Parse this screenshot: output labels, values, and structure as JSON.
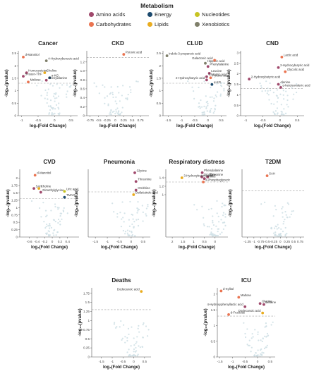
{
  "legend": {
    "title": "Metabolism",
    "items": [
      {
        "label": "Amino acids",
        "color": "#a0496c"
      },
      {
        "label": "Energy",
        "color": "#1c4a6e"
      },
      {
        "label": "Nucleotides",
        "color": "#c7c423"
      },
      {
        "label": "Carbohydrates",
        "color": "#ea7451"
      },
      {
        "label": "Lipids",
        "color": "#e9ac1f"
      },
      {
        "label": "Xenobiotics",
        "color": "#7f7f6a"
      }
    ]
  },
  "xlabel": "log₂(Fold Change)",
  "ylabel": "-log₁₀(pvalue)",
  "chart_data": [
    {
      "type": "scatter",
      "title": "Cancer",
      "xlim": [
        -1.1,
        0.7
      ],
      "ylim": [
        0,
        2.6
      ],
      "xticks": [
        "-1",
        "-0.5",
        "0",
        "0.5"
      ],
      "xtickvals": [
        -1,
        -0.5,
        0,
        0.5
      ],
      "yticks": [
        "0",
        "0.5",
        "1",
        "1.5",
        "2",
        "2.5"
      ],
      "ytickvals": [
        0,
        0.5,
        1,
        1.5,
        2,
        2.5
      ],
      "threshold": 1.3,
      "points": [
        {
          "label": "d-Mannitol",
          "x": -0.95,
          "y": 2.35,
          "cat": "Carbohydrates"
        },
        {
          "label": "4-Hydroxybenzoic acid",
          "x": -0.25,
          "y": 2.2,
          "cat": "Xenobiotics"
        },
        {
          "label": "Homocysteine",
          "x": -0.85,
          "y": 1.72,
          "cat": "Amino acids"
        },
        {
          "label": "Choline",
          "x": -0.3,
          "y": 1.72,
          "cat": "Lipids"
        },
        {
          "label": "5-Isoen-THF",
          "x": -0.95,
          "y": 1.58,
          "cat": "Amino acids"
        },
        {
          "label": "α-KG",
          "x": -0.15,
          "y": 1.52,
          "cat": "Energy"
        },
        {
          "label": "Phenylalanine",
          "x": -0.25,
          "y": 1.42,
          "cat": "Amino acids"
        },
        {
          "label": "Maltose",
          "x": -0.8,
          "y": 1.35,
          "cat": "Carbohydrates"
        }
      ]
    },
    {
      "type": "scatter",
      "title": "CKD",
      "xlim": [
        -0.85,
        1.0
      ],
      "ylim": [
        0,
        1.45
      ],
      "xticks": [
        "-0.75",
        "-0.5",
        "-0.25",
        "0",
        "0.25",
        "0.5",
        "0.75"
      ],
      "xtickvals": [
        -0.75,
        -0.5,
        -0.25,
        0,
        0.25,
        0.5,
        0.75
      ],
      "yticks": [
        "0",
        "0.2",
        "0.4",
        "0.6",
        "0.8",
        "1.0",
        "1.2"
      ],
      "ytickvals": [
        0,
        0.2,
        0.4,
        0.6,
        0.8,
        1.0,
        1.2
      ],
      "threshold": 1.3,
      "points": [
        {
          "label": "Pyruvic acid",
          "x": 0.25,
          "y": 1.37,
          "cat": "Carbohydrates"
        }
      ]
    },
    {
      "type": "scatter",
      "title": "CLUD",
      "xlim": [
        -1.7,
        0.7
      ],
      "ylim": [
        0,
        2.6
      ],
      "xticks": [
        "-1.5",
        "-1",
        "-0.5",
        "0",
        "0.5"
      ],
      "xtickvals": [
        -1.5,
        -1,
        -0.5,
        0,
        0.5
      ],
      "yticks": [
        "0",
        "0.5",
        "1",
        "1.5",
        "2",
        "2.5"
      ],
      "ytickvals": [
        0,
        0.5,
        1,
        1.5,
        2,
        2.5
      ],
      "threshold": 1.3,
      "points": [
        {
          "label": "Indole-3-propanoic acid",
          "x": -1.55,
          "y": 2.4,
          "cat": "Xenobiotics"
        },
        {
          "label": "Hippuric acid",
          "x": -0.1,
          "y": 2.1,
          "cat": "Xenobiotics"
        },
        {
          "label": "Galactonic acid",
          "x": 0.25,
          "y": 2.22,
          "cat": "Carbohydrates"
        },
        {
          "label": "Phenylalanine",
          "x": 0.0,
          "y": 1.97,
          "cat": "Amino acids"
        },
        {
          "label": "Leucine",
          "x": 0.05,
          "y": 1.7,
          "cat": "Amino acids"
        },
        {
          "label": "Glutamic acid",
          "x": -0.05,
          "y": 1.56,
          "cat": "Amino acids"
        },
        {
          "label": "Pyruvic acid",
          "x": 0.1,
          "y": 1.52,
          "cat": "Carbohydrates"
        },
        {
          "label": "2-Hydroxybutyric acid",
          "x": -0.05,
          "y": 1.43,
          "cat": "Amino acids"
        },
        {
          "label": "α-KG",
          "x": 0.15,
          "y": 1.25,
          "cat": "Energy"
        }
      ]
    },
    {
      "type": "scatter",
      "title": "CND",
      "xlim": [
        -1.15,
        0.7
      ],
      "ylim": [
        0,
        3.1
      ],
      "xticks": [
        "-1",
        "-0.5",
        "0",
        "0.5"
      ],
      "xtickvals": [
        -1,
        -0.5,
        0,
        0.5
      ],
      "yticks": [
        "0",
        "0.5",
        "1",
        "1.5",
        "2",
        "2.5",
        "3"
      ],
      "ytickvals": [
        0,
        0.5,
        1,
        1.5,
        2,
        2.5,
        3
      ],
      "threshold": 1.3,
      "points": [
        {
          "label": "Lactic acid",
          "x": 0.05,
          "y": 2.8,
          "cat": "Carbohydrates"
        },
        {
          "label": "2-Hydroxybutyric acid",
          "x": -0.05,
          "y": 2.3,
          "cat": "Amino acids"
        },
        {
          "label": "Glycolic acid",
          "x": 0.15,
          "y": 2.1,
          "cat": "Carbohydrates"
        },
        {
          "label": "2-Hydroxybutyric acid",
          "x": -0.9,
          "y": 1.75,
          "cat": "Amino acids"
        },
        {
          "label": "Alanine",
          "x": -0.05,
          "y": 1.5,
          "cat": "Amino acids"
        },
        {
          "label": "α-ketoisovaleric acid",
          "x": 0.02,
          "y": 1.35,
          "cat": "Amino acids"
        }
      ]
    },
    {
      "type": "scatter",
      "title": "CVD",
      "xlim": [
        -0.85,
        0.7
      ],
      "ylim": [
        0,
        2.3
      ],
      "xticks": [
        "-0.6",
        "-0.4",
        "-0.2",
        "0",
        "0.2",
        "0.4"
      ],
      "xtickvals": [
        -0.6,
        -0.4,
        -0.2,
        0,
        0.2,
        0.4
      ],
      "yticks": [
        "0",
        "0.25",
        "0.5",
        "0.75",
        "1",
        "1.25",
        "1.5",
        "1.75",
        "2"
      ],
      "ytickvals": [
        0,
        0.25,
        0.5,
        0.75,
        1,
        1.25,
        1.5,
        1.75,
        2
      ],
      "threshold": 1.3,
      "points": [
        {
          "label": "d-Mannitol",
          "x": -0.45,
          "y": 2.1,
          "cat": "Carbohydrates"
        },
        {
          "label": "SAH",
          "x": -0.48,
          "y": 1.65,
          "cat": "Amino acids"
        },
        {
          "label": "Choline",
          "x": -0.35,
          "y": 1.65,
          "cat": "Lipids"
        },
        {
          "label": "Dimethylglycine",
          "x": -0.3,
          "y": 1.52,
          "cat": "Amino acids"
        },
        {
          "label": "Uric acid",
          "x": 0.32,
          "y": 1.55,
          "cat": "Nucleotides"
        },
        {
          "label": "TMAO",
          "x": 0.32,
          "y": 1.35,
          "cat": "Energy"
        }
      ]
    },
    {
      "type": "scatter",
      "title": "Pneumonia",
      "xlim": [
        -1.8,
        0.8
      ],
      "ylim": [
        0,
        1.95
      ],
      "xticks": [
        "-1.5",
        "-1",
        "-0.5",
        "0",
        "0.5"
      ],
      "xtickvals": [
        -1.5,
        -1,
        -0.5,
        0,
        0.5
      ],
      "yticks": [],
      "ytickvals": [],
      "threshold": 1.3,
      "points": [
        {
          "label": "Glycine",
          "x": 0.15,
          "y": 1.85,
          "cat": "Amino acids"
        },
        {
          "label": "Threonine",
          "x": 0.2,
          "y": 1.6,
          "cat": "Amino acids"
        },
        {
          "label": "Ornithine",
          "x": 0.2,
          "y": 1.35,
          "cat": "Amino acids"
        },
        {
          "label": "Dodecanoic acid",
          "x": 0.1,
          "y": 1.22,
          "cat": "Lipids"
        }
      ]
    },
    {
      "type": "scatter",
      "title": "Respiratory distress",
      "xlim": [
        2.3,
        -0.6
      ],
      "ylim": [
        0,
        1.6
      ],
      "xticks": [
        "2",
        "1.5",
        "1",
        "0.5",
        "0"
      ],
      "xtickvals": [
        2,
        1.5,
        1,
        0.5,
        0
      ],
      "yticks": [
        "1.4",
        "1.2",
        "1"
      ],
      "ytickvals": [
        1.4,
        1.2,
        1.0
      ],
      "threshold": 1.3,
      "points": [
        {
          "label": "Phenylalanine",
          "x": 0.6,
          "y": 1.52,
          "cat": "Amino acids"
        },
        {
          "label": "Ornithine",
          "x": 0.62,
          "y": 1.42,
          "cat": "Amino acids"
        },
        {
          "label": "Threonine",
          "x": 0.35,
          "y": 1.42,
          "cat": "Amino acids"
        },
        {
          "label": "3-Hydroxybutyric acid",
          "x": 1.55,
          "y": 1.4,
          "cat": "Lipids"
        },
        {
          "label": "Proline",
          "x": 0.5,
          "y": 1.38,
          "cat": "Amino acids"
        },
        {
          "label": "3-Phosphoglyceric",
          "x": 0.55,
          "y": 1.3,
          "cat": "Carbohydrates"
        }
      ]
    },
    {
      "type": "scatter",
      "title": "T2DM",
      "xlim": [
        -1.45,
        0.9
      ],
      "ylim": [
        0,
        1.9
      ],
      "xticks": [
        "-1.25",
        "-1",
        "-0.75",
        "-0.5",
        "-0.25",
        "0",
        "0.25",
        "0.5",
        "0.75"
      ],
      "xtickvals": [
        -1.25,
        -1,
        -0.75,
        -0.5,
        -0.25,
        0,
        0.25,
        0.5,
        0.75
      ],
      "yticks": [],
      "ytickvals": [],
      "threshold": 1.3,
      "points": [
        {
          "label": "SAH",
          "x": -0.5,
          "y": 1.72,
          "cat": "Carbohydrates"
        }
      ]
    },
    {
      "type": "scatter",
      "title": "Deaths",
      "xlim": [
        -1.95,
        0.8
      ],
      "ylim": [
        0,
        1.9
      ],
      "xticks": [
        "-1.5",
        "-1",
        "-0.5",
        "0",
        "0.5"
      ],
      "xtickvals": [
        -1.5,
        -1,
        -0.5,
        0,
        0.5
      ],
      "yticks": [
        "0",
        "0.25",
        "0.5",
        "0.75",
        "1",
        "1.25",
        "1.5",
        "1.75"
      ],
      "ytickvals": [
        0,
        0.25,
        0.5,
        0.75,
        1,
        1.25,
        1.5,
        1.75
      ],
      "threshold": 1.3,
      "points": [
        {
          "label": "Dodecanoic acid",
          "x": 0.35,
          "y": 1.8,
          "cat": "Lipids"
        }
      ]
    },
    {
      "type": "scatter",
      "title": "ICU",
      "xlim": [
        -1.6,
        0.7
      ],
      "ylim": [
        0,
        2.2
      ],
      "xticks": [
        "-1.5",
        "-1",
        "-0.5",
        "0",
        "0.5"
      ],
      "xtickvals": [
        -1.5,
        -1,
        -0.5,
        0,
        0.5
      ],
      "yticks": [
        "0",
        "0.5",
        "1",
        "1.5",
        "2"
      ],
      "ytickvals": [
        0,
        0.5,
        1,
        1.5,
        2
      ],
      "threshold": 1.3,
      "points": [
        {
          "label": "d-Xylitol",
          "x": -1.45,
          "y": 2.1,
          "cat": "Carbohydrates"
        },
        {
          "label": "Maltose",
          "x": -0.75,
          "y": 1.9,
          "cat": "Carbohydrates"
        },
        {
          "label": "Glycine",
          "x": 0.1,
          "y": 1.7,
          "cat": "Amino acids"
        },
        {
          "label": "Betaine",
          "x": 0.25,
          "y": 1.67,
          "cat": "Amino acids"
        },
        {
          "label": "4-Hydroxyphenyllactic acid",
          "x": -0.5,
          "y": 1.6,
          "cat": "Amino acids"
        },
        {
          "label": "Dodecanoic acid",
          "x": 0.2,
          "y": 1.4,
          "cat": "Lipids"
        },
        {
          "label": "d-Fructose",
          "x": -1.15,
          "y": 1.35,
          "cat": "Carbohydrates"
        }
      ]
    }
  ]
}
